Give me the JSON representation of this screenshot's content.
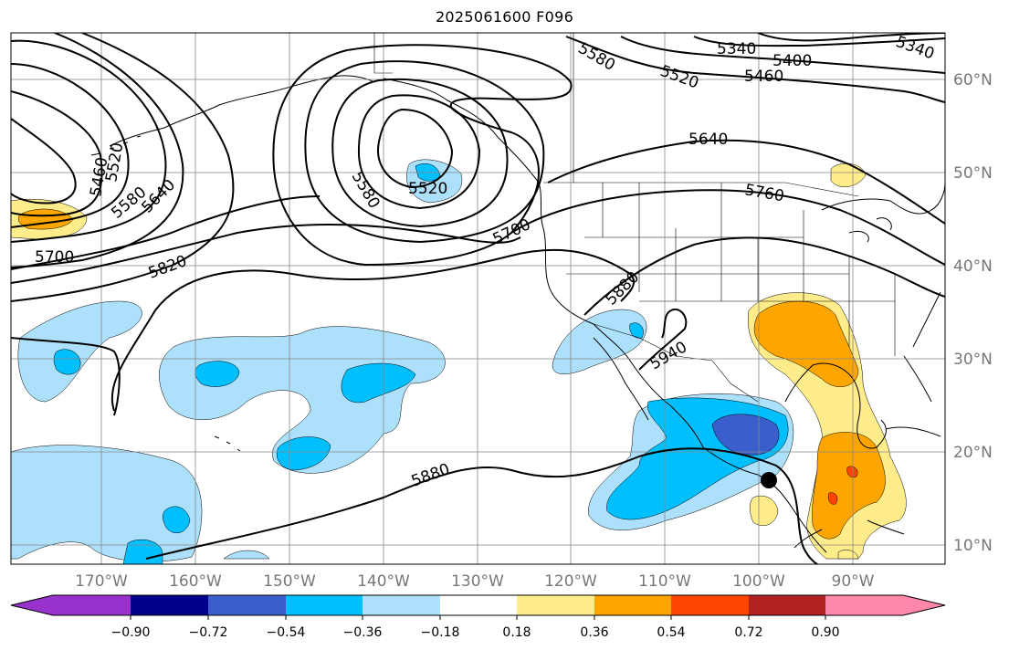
{
  "title": "2025061600 F096",
  "longitude_labels": [
    "170°W",
    "160°W",
    "150°W",
    "140°W",
    "130°W",
    "120°W",
    "110°W",
    "100°W",
    "90°W"
  ],
  "latitude_labels": [
    "60°N",
    "50°N",
    "40°N",
    "30°N",
    "20°N",
    "10°N"
  ],
  "contour_labels": [
    "5340",
    "5340",
    "5400",
    "5460",
    "5460",
    "5520",
    "5520",
    "5520",
    "5580",
    "5580",
    "5580",
    "5640",
    "5640",
    "5700",
    "5700",
    "5760",
    "5820",
    "5880",
    "5880",
    "5940"
  ],
  "colorbar": {
    "ticks": [
      "−0.90",
      "−0.72",
      "−0.54",
      "−0.36",
      "−0.18",
      "0.18",
      "0.36",
      "0.54",
      "0.72",
      "0.90"
    ],
    "colors": [
      "#9932cc",
      "#00008b",
      "#3a5fcd",
      "#00bfff",
      "#ade0fa",
      "#ffffff",
      "#ffec8b",
      "#ffa500",
      "#ff4500",
      "#b22222",
      "#ff88aa"
    ]
  },
  "marker": "storm-center-dot",
  "colors": {
    "land_outline": "#000000",
    "grid": "#888888",
    "contour": "#000000"
  }
}
